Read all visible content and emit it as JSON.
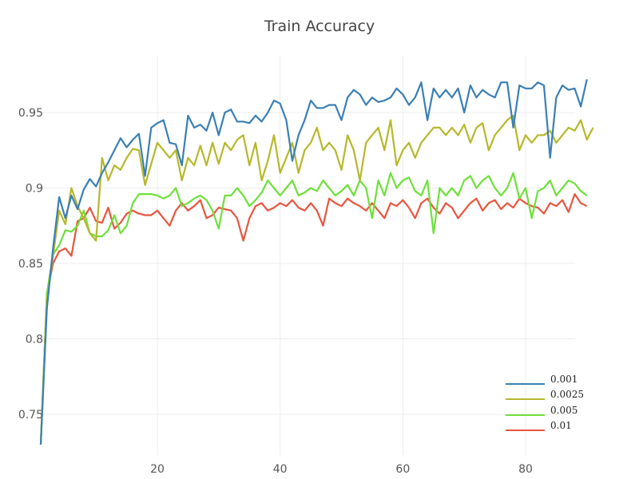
{
  "chart_data": {
    "type": "line",
    "title": "Train Accuracy",
    "xlabel": "",
    "ylabel": "",
    "xlim": [
      1,
      90
    ],
    "ylim": [
      0.728,
      0.98
    ],
    "xticks": [
      20,
      40,
      60,
      80
    ],
    "yticks": [
      0.75,
      0.8,
      0.85,
      0.9,
      0.95
    ],
    "grid": true,
    "legend_position": "bottom-right",
    "series": [
      {
        "name": "0.001",
        "color": "#3a7fb5",
        "values": [
          0.73,
          0.82,
          0.86,
          0.894,
          0.88,
          0.895,
          0.886,
          0.899,
          0.906,
          0.901,
          0.91,
          0.917,
          0.925,
          0.933,
          0.927,
          0.932,
          0.936,
          0.908,
          0.94,
          0.943,
          0.945,
          0.93,
          0.929,
          0.915,
          0.948,
          0.94,
          0.942,
          0.938,
          0.95,
          0.935,
          0.95,
          0.952,
          0.944,
          0.944,
          0.943,
          0.948,
          0.944,
          0.95,
          0.958,
          0.956,
          0.945,
          0.918,
          0.935,
          0.945,
          0.958,
          0.953,
          0.953,
          0.955,
          0.955,
          0.945,
          0.96,
          0.965,
          0.962,
          0.955,
          0.96,
          0.957,
          0.958,
          0.96,
          0.966,
          0.962,
          0.955,
          0.96,
          0.97,
          0.945,
          0.966,
          0.96,
          0.965,
          0.96,
          0.966,
          0.95,
          0.968,
          0.96,
          0.965,
          0.962,
          0.96,
          0.97,
          0.97,
          0.94,
          0.968,
          0.966,
          0.966,
          0.97,
          0.968,
          0.92,
          0.96,
          0.968,
          0.965,
          0.966,
          0.954,
          0.972
        ]
      },
      {
        "name": "0.0025",
        "color": "#b6b82a",
        "values": [
          0.73,
          0.825,
          0.855,
          0.885,
          0.876,
          0.9,
          0.888,
          0.88,
          0.87,
          0.865,
          0.92,
          0.905,
          0.915,
          0.912,
          0.92,
          0.926,
          0.925,
          0.902,
          0.916,
          0.93,
          0.925,
          0.92,
          0.925,
          0.905,
          0.92,
          0.915,
          0.928,
          0.915,
          0.93,
          0.916,
          0.93,
          0.925,
          0.932,
          0.935,
          0.915,
          0.93,
          0.905,
          0.918,
          0.935,
          0.91,
          0.92,
          0.93,
          0.91,
          0.925,
          0.93,
          0.94,
          0.925,
          0.93,
          0.925,
          0.912,
          0.935,
          0.925,
          0.905,
          0.93,
          0.935,
          0.94,
          0.925,
          0.945,
          0.915,
          0.925,
          0.93,
          0.92,
          0.93,
          0.935,
          0.94,
          0.94,
          0.935,
          0.94,
          0.935,
          0.942,
          0.93,
          0.94,
          0.943,
          0.925,
          0.935,
          0.94,
          0.945,
          0.948,
          0.925,
          0.935,
          0.93,
          0.935,
          0.935,
          0.938,
          0.93,
          0.935,
          0.94,
          0.938,
          0.945,
          0.932,
          0.94
        ]
      },
      {
        "name": "0.005",
        "color": "#6ee03a",
        "values": [
          0.73,
          0.83,
          0.856,
          0.862,
          0.872,
          0.871,
          0.875,
          0.885,
          0.87,
          0.868,
          0.868,
          0.872,
          0.882,
          0.87,
          0.875,
          0.89,
          0.896,
          0.896,
          0.896,
          0.895,
          0.893,
          0.895,
          0.9,
          0.888,
          0.89,
          0.893,
          0.895,
          0.892,
          0.885,
          0.873,
          0.895,
          0.895,
          0.9,
          0.895,
          0.888,
          0.892,
          0.897,
          0.905,
          0.9,
          0.895,
          0.9,
          0.905,
          0.895,
          0.897,
          0.9,
          0.898,
          0.905,
          0.9,
          0.895,
          0.898,
          0.902,
          0.895,
          0.905,
          0.9,
          0.88,
          0.905,
          0.895,
          0.91,
          0.9,
          0.905,
          0.907,
          0.898,
          0.895,
          0.905,
          0.87,
          0.9,
          0.895,
          0.9,
          0.895,
          0.905,
          0.908,
          0.9,
          0.905,
          0.908,
          0.9,
          0.895,
          0.9,
          0.91,
          0.893,
          0.9,
          0.88,
          0.898,
          0.9,
          0.905,
          0.895,
          0.9,
          0.905,
          0.903,
          0.898,
          0.895
        ]
      },
      {
        "name": "0.01",
        "color": "#e8553f",
        "values": [
          0.73,
          0.83,
          0.85,
          0.858,
          0.86,
          0.855,
          0.878,
          0.88,
          0.887,
          0.878,
          0.877,
          0.887,
          0.873,
          0.877,
          0.883,
          0.885,
          0.883,
          0.882,
          0.882,
          0.885,
          0.88,
          0.875,
          0.885,
          0.89,
          0.885,
          0.888,
          0.892,
          0.88,
          0.882,
          0.887,
          0.886,
          0.885,
          0.88,
          0.865,
          0.88,
          0.888,
          0.89,
          0.885,
          0.887,
          0.89,
          0.888,
          0.892,
          0.887,
          0.885,
          0.89,
          0.885,
          0.875,
          0.893,
          0.89,
          0.888,
          0.893,
          0.89,
          0.888,
          0.885,
          0.89,
          0.885,
          0.88,
          0.89,
          0.888,
          0.892,
          0.887,
          0.88,
          0.89,
          0.893,
          0.887,
          0.883,
          0.89,
          0.887,
          0.88,
          0.885,
          0.89,
          0.893,
          0.885,
          0.89,
          0.892,
          0.886,
          0.89,
          0.887,
          0.893,
          0.89,
          0.888,
          0.887,
          0.883,
          0.89,
          0.888,
          0.892,
          0.884,
          0.896,
          0.89,
          0.888
        ]
      }
    ]
  }
}
